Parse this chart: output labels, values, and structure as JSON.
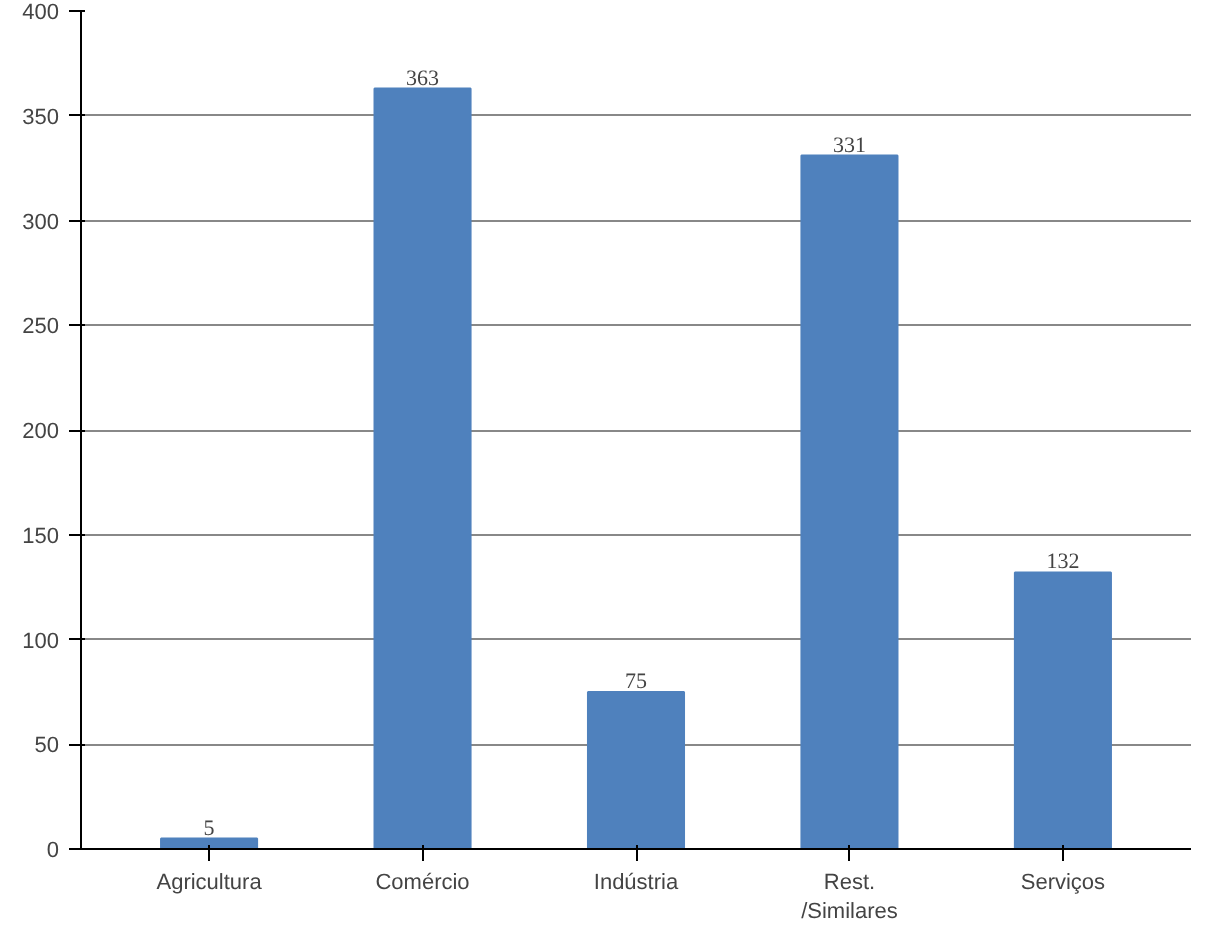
{
  "chart_data": {
    "type": "bar",
    "categories": [
      "Agricultura",
      "Comércio",
      "Indústria",
      "Rest.\n/Similares",
      "Serviços"
    ],
    "values": [
      5,
      363,
      75,
      331,
      132
    ],
    "color": "#4f81bd",
    "ylim": [
      0,
      400
    ],
    "yticks": [
      0,
      50,
      100,
      150,
      200,
      250,
      300,
      350,
      400
    ],
    "grid": "y",
    "data_labels": true
  }
}
